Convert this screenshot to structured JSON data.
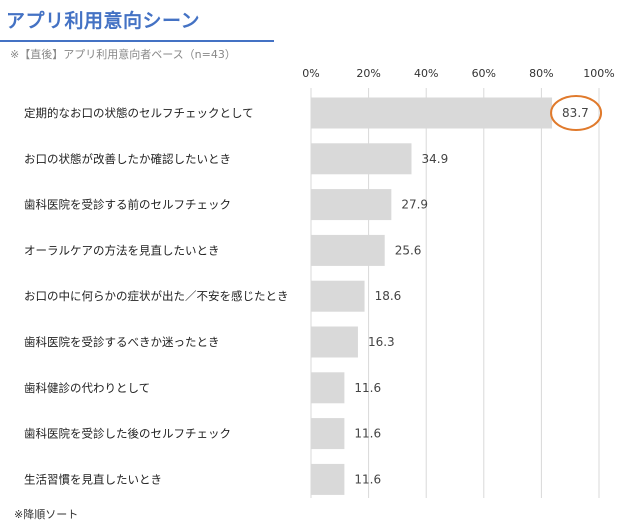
{
  "chart_data": {
    "type": "bar",
    "orientation": "horizontal",
    "title": "アプリ利用意向シーン",
    "subtitle": "※【直後】アプリ利用意向者ベース（n=43）",
    "footnote": "※降順ソート",
    "xlim": [
      0,
      100
    ],
    "ticks": [
      0,
      20,
      40,
      60,
      80,
      100
    ],
    "tick_labels": [
      "0%",
      "20%",
      "40%",
      "60%",
      "80%",
      "100%"
    ],
    "categories": [
      "定期的なお口の状態のセルフチェックとして",
      "お口の状態が改善したか確認したいとき",
      "歯科医院を受診する前のセルフチェック",
      "オーラルケアの方法を見直したいとき",
      "お口の中に何らかの症状が出た／不安を感じたとき",
      "歯科医院を受診するべきか迷ったとき",
      "歯科健診の代わりとして",
      "歯科医院を受診した後のセルフチェック",
      "生活習慣を見直したいとき"
    ],
    "values": [
      83.7,
      34.9,
      27.9,
      25.6,
      18.6,
      16.3,
      11.6,
      11.6,
      11.6
    ],
    "value_labels": [
      "83.7",
      "34.9",
      "27.9",
      "25.6",
      "18.6",
      "16.3",
      "11.6",
      "11.6",
      "11.6"
    ],
    "highlight_index": 0,
    "colors": {
      "title": "#4472C4",
      "bar": "#D9D9D9",
      "grid": "#D9D9D9",
      "highlight": "#E07A2C"
    }
  }
}
